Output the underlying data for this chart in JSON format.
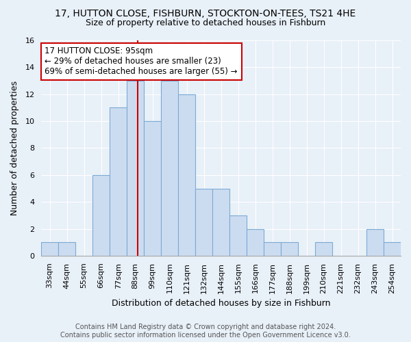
{
  "title": "17, HUTTON CLOSE, FISHBURN, STOCKTON-ON-TEES, TS21 4HE",
  "subtitle": "Size of property relative to detached houses in Fishburn",
  "xlabel": "Distribution of detached houses by size in Fishburn",
  "ylabel": "Number of detached properties",
  "bar_color": "#ccdcf0",
  "bar_edge_color": "#7baad4",
  "categories": [
    "33sqm",
    "44sqm",
    "55sqm",
    "66sqm",
    "77sqm",
    "88sqm",
    "99sqm",
    "110sqm",
    "121sqm",
    "132sqm",
    "144sqm",
    "155sqm",
    "166sqm",
    "177sqm",
    "188sqm",
    "199sqm",
    "210sqm",
    "221sqm",
    "232sqm",
    "243sqm",
    "254sqm"
  ],
  "values": [
    1,
    1,
    0,
    6,
    11,
    13,
    10,
    13,
    12,
    5,
    5,
    3,
    2,
    1,
    1,
    0,
    1,
    0,
    0,
    2,
    1
  ],
  "ylim": [
    0,
    16
  ],
  "yticks": [
    0,
    2,
    4,
    6,
    8,
    10,
    12,
    14,
    16
  ],
  "annotation_line1": "17 HUTTON CLOSE: 95sqm",
  "annotation_line2": "← 29% of detached houses are smaller (23)",
  "annotation_line3": "69% of semi-detached houses are larger (55) →",
  "footer_line1": "Contains HM Land Registry data © Crown copyright and database right 2024.",
  "footer_line2": "Contains public sector information licensed under the Open Government Licence v3.0.",
  "bg_color": "#e8f0f8",
  "plot_bg_color": "#e8f0f8",
  "grid_color": "#ffffff",
  "marker_line_color": "#cc0000",
  "annotation_box_edge": "#cc0000",
  "title_fontsize": 10,
  "subtitle_fontsize": 9,
  "axis_label_fontsize": 9,
  "tick_fontsize": 8,
  "annotation_fontsize": 8.5,
  "footer_fontsize": 7
}
